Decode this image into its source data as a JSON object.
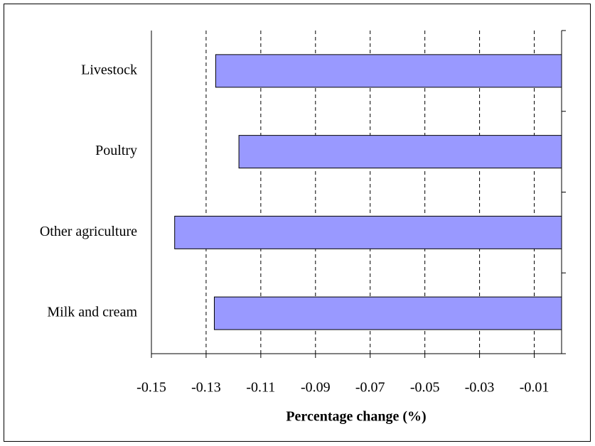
{
  "chart_data": {
    "type": "bar",
    "orientation": "horizontal",
    "x_label": "Percentage change (%)",
    "categories": [
      "Livestock",
      "Poultry",
      "Other agriculture",
      "Milk and cream"
    ],
    "values": [
      -0.1265,
      -0.118,
      -0.1415,
      -0.127
    ],
    "color": "#9999ff",
    "xlim": [
      -0.15,
      0
    ],
    "xticks": [
      -0.15,
      -0.13,
      -0.11,
      -0.09,
      -0.07,
      -0.05,
      -0.03,
      -0.01
    ],
    "grid": true
  }
}
